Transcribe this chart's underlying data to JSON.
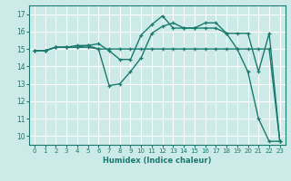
{
  "xlabel": "Humidex (Indice chaleur)",
  "bg_color": "#cceae8",
  "grid_color": "#ffffff",
  "line_color": "#1a7a6e",
  "xlim": [
    -0.5,
    23.5
  ],
  "ylim": [
    9.5,
    17.5
  ],
  "xticks": [
    0,
    1,
    2,
    3,
    4,
    5,
    6,
    7,
    8,
    9,
    10,
    11,
    12,
    13,
    14,
    15,
    16,
    17,
    18,
    19,
    20,
    21,
    22,
    23
  ],
  "yticks": [
    10,
    11,
    12,
    13,
    14,
    15,
    16,
    17
  ],
  "line1_x": [
    0,
    1,
    2,
    3,
    4,
    5,
    6,
    7,
    8,
    9,
    10,
    11,
    12,
    13,
    14,
    15,
    16,
    17,
    18,
    19,
    20,
    21,
    22,
    23
  ],
  "line1_y": [
    14.9,
    14.9,
    15.1,
    15.1,
    15.1,
    15.2,
    15.3,
    14.9,
    14.4,
    14.4,
    15.8,
    16.4,
    16.9,
    16.2,
    16.2,
    16.2,
    16.2,
    16.2,
    15.9,
    15.9,
    15.9,
    13.7,
    15.9,
    9.7
  ],
  "line2_x": [
    0,
    1,
    2,
    3,
    4,
    5,
    6,
    7,
    8,
    9,
    10,
    11,
    12,
    13,
    14,
    15,
    16,
    17,
    18,
    19,
    20,
    21,
    22,
    23
  ],
  "line2_y": [
    14.9,
    14.9,
    15.1,
    15.1,
    15.2,
    15.2,
    15.0,
    12.9,
    13.0,
    13.7,
    14.5,
    15.9,
    16.3,
    16.5,
    16.2,
    16.2,
    16.5,
    16.5,
    15.9,
    15.0,
    13.7,
    11.0,
    9.7,
    9.7
  ],
  "line3_x": [
    0,
    1,
    2,
    3,
    4,
    5,
    6,
    7,
    8,
    9,
    10,
    11,
    12,
    13,
    14,
    15,
    16,
    17,
    18,
    19,
    20,
    21,
    22,
    23
  ],
  "line3_y": [
    14.9,
    14.9,
    15.1,
    15.1,
    15.1,
    15.1,
    15.0,
    15.0,
    15.0,
    15.0,
    15.0,
    15.0,
    15.0,
    15.0,
    15.0,
    15.0,
    15.0,
    15.0,
    15.0,
    15.0,
    15.0,
    15.0,
    15.0,
    9.7
  ]
}
